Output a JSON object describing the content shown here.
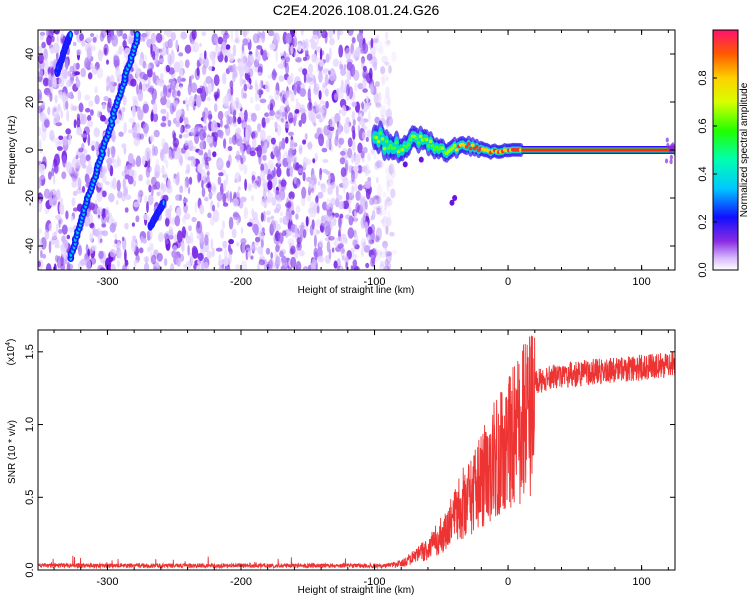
{
  "title": "C2E4.2026.108.01.24.G26",
  "chart_data": [
    {
      "type": "heatmap",
      "name": "spectrogram",
      "xlabel": "Height of straight line (km)",
      "ylabel": "Frequency (Hz)",
      "xlim": [
        -352,
        125
      ],
      "ylim": [
        -50,
        50
      ],
      "xticks": [
        -300,
        -200,
        -100,
        0,
        100
      ],
      "yticks": [
        -40,
        -20,
        0,
        20,
        40
      ],
      "colorbar": {
        "label": "Normalized spectral amplitude",
        "range": [
          0.0,
          1.0
        ],
        "ticks": [
          0.0,
          0.2,
          0.4,
          0.6,
          0.8
        ]
      },
      "features": [
        {
          "name": "diagonal-streak",
          "from": [
            -328,
            -45
          ],
          "to": [
            -277,
            48
          ]
        },
        {
          "name": "short-streak-upper-left",
          "from": [
            -338,
            32
          ],
          "to": [
            -328,
            48
          ]
        },
        {
          "name": "short-streak-lower",
          "from": [
            -268,
            -32
          ],
          "to": [
            -258,
            -22
          ]
        },
        {
          "name": "carrier-line",
          "from": [
            -98,
            0
          ],
          "to": [
            125,
            0
          ]
        }
      ]
    },
    {
      "type": "line",
      "name": "snr",
      "xlabel": "Height of straight line (km)",
      "ylabel": "SNR (10 * v/v)",
      "scale_label": "(x10",
      "scale_exponent": "4",
      "xlim": [
        -352,
        125
      ],
      "ylim": [
        0,
        1.65
      ],
      "xticks": [
        -300,
        -200,
        -100,
        0,
        100
      ],
      "yticks": [
        0.0,
        0.5,
        1.0,
        1.5
      ],
      "color": "#ee3333",
      "envelope": [
        {
          "x": -352,
          "y": 0.03
        },
        {
          "x": -100,
          "y": 0.03
        },
        {
          "x": -80,
          "y": 0.05
        },
        {
          "x": -60,
          "y": 0.18
        },
        {
          "x": -45,
          "y": 0.35
        },
        {
          "x": -30,
          "y": 0.62
        },
        {
          "x": -15,
          "y": 0.85
        },
        {
          "x": 0,
          "y": 1.05
        },
        {
          "x": 15,
          "y": 1.28
        },
        {
          "x": 35,
          "y": 1.33
        },
        {
          "x": 60,
          "y": 1.36
        },
        {
          "x": 90,
          "y": 1.38
        },
        {
          "x": 125,
          "y": 1.42
        }
      ]
    }
  ]
}
